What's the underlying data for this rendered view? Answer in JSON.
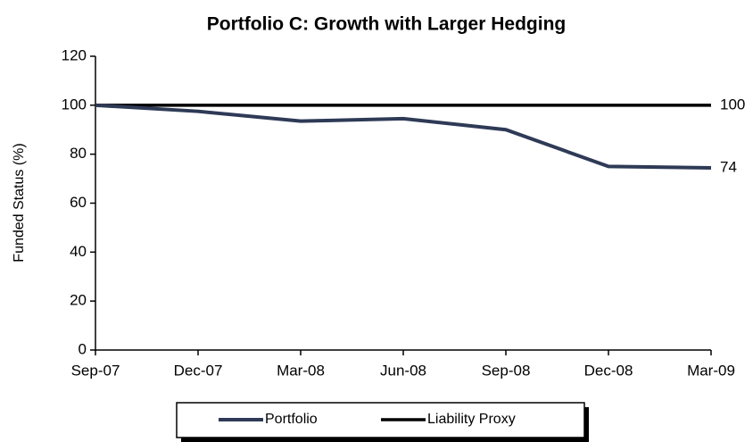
{
  "chart_data": {
    "type": "line",
    "title": "Portfolio C: Growth with Larger Hedging",
    "y_label": "Funded Status (%)",
    "categories": [
      "Sep-07",
      "Dec-07",
      "Mar-08",
      "Jun-08",
      "Sep-08",
      "Dec-08",
      "Mar-09"
    ],
    "series": [
      {
        "name": "Portfolio",
        "color": "#2e3a56",
        "values": [
          100,
          97.5,
          93.5,
          94.5,
          90,
          75,
          74.4
        ],
        "value_labels": [
          null,
          null,
          null,
          null,
          null,
          null,
          "74"
        ]
      },
      {
        "name": "Liability Proxy",
        "color": "#000000",
        "values": [
          100,
          100,
          100,
          100,
          100,
          100,
          100
        ],
        "value_labels": [
          null,
          null,
          null,
          null,
          null,
          null,
          "100"
        ]
      }
    ],
    "ylim": [
      0,
      120
    ],
    "yticks": [
      0,
      20,
      40,
      60,
      80,
      100,
      120
    ],
    "grid": false,
    "legend": "bottom"
  }
}
